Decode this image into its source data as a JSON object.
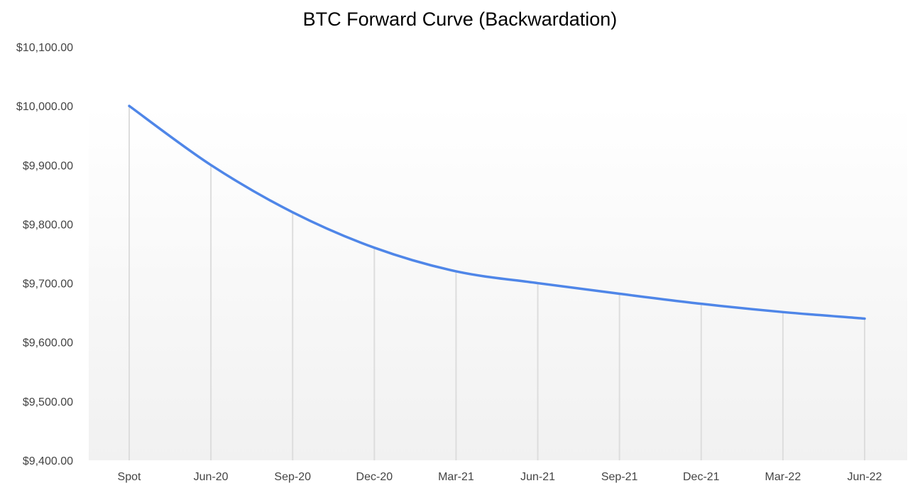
{
  "chart_data": {
    "type": "line",
    "title": "BTC Forward Curve (Backwardation)",
    "xlabel": "",
    "ylabel": "",
    "categories": [
      "Spot",
      "Jun-20",
      "Sep-20",
      "Dec-20",
      "Mar-21",
      "Jun-21",
      "Sep-21",
      "Dec-21",
      "Mar-22",
      "Jun-22"
    ],
    "series": [
      {
        "values": [
          10000,
          9900,
          9820,
          9760,
          9720,
          9700,
          9682,
          9665,
          9651,
          9640
        ]
      }
    ],
    "ylim": [
      9400,
      10100
    ],
    "yticks": [
      9400,
      9500,
      9600,
      9700,
      9800,
      9900,
      10000,
      10100
    ],
    "ytick_labels": [
      "$9,400.00",
      "$9,500.00",
      "$9,600.00",
      "$9,700.00",
      "$9,800.00",
      "$9,900.00",
      "$10,000.00",
      "$10,100.00"
    ],
    "drop_lines": true,
    "grid": false,
    "legend": "none",
    "line_color": "#4F86E8",
    "drop_line_color": "#DDDDDD"
  }
}
